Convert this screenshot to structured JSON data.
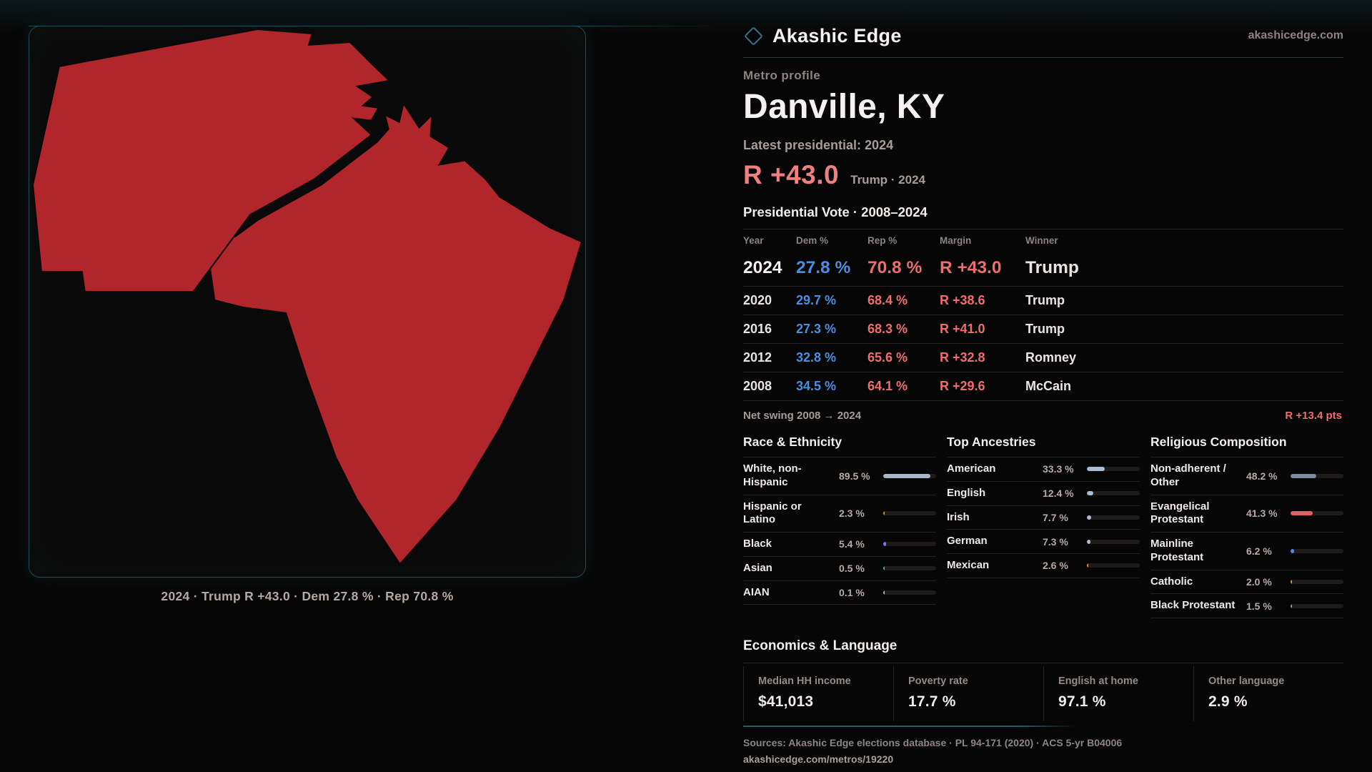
{
  "brand": {
    "name": "Akashic Edge",
    "domain": "akashicedge.com"
  },
  "colors": {
    "accent_teal": "#1d4e57",
    "county_red": "#b1262b",
    "dem_blue": "#4b8ee2",
    "rep_red": "#ef6d6d",
    "margin_big_red": "#f07f81"
  },
  "profile": {
    "kicker": "Metro profile",
    "title": "Danville, KY",
    "latest_label": "Latest presidential: 2024",
    "margin_big": "R +43.0",
    "margin_sub": "Trump · 2024"
  },
  "map": {
    "caption": "2024 · Trump R +43.0 · Dem 27.8 % · Rep 70.8 %"
  },
  "vote_table": {
    "title": "Presidential Vote · 2008–2024",
    "columns": [
      "Year",
      "Dem %",
      "Rep %",
      "Margin",
      "Winner"
    ],
    "rows": [
      {
        "year": "2024",
        "dem": "27.8 %",
        "rep": "70.8 %",
        "margin": "R +43.0",
        "winner": "Trump"
      },
      {
        "year": "2020",
        "dem": "29.7 %",
        "rep": "68.4 %",
        "margin": "R +38.6",
        "winner": "Trump"
      },
      {
        "year": "2016",
        "dem": "27.3 %",
        "rep": "68.3 %",
        "margin": "R +41.0",
        "winner": "Trump"
      },
      {
        "year": "2012",
        "dem": "32.8 %",
        "rep": "65.6 %",
        "margin": "R +32.8",
        "winner": "Romney"
      },
      {
        "year": "2008",
        "dem": "34.5 %",
        "rep": "64.1 %",
        "margin": "R +29.6",
        "winner": "McCain"
      }
    ],
    "net_swing_label": "Net swing 2008 → 2024",
    "net_swing_value": "R +13.4 pts"
  },
  "demographics": [
    {
      "title": "Race & Ethnicity",
      "rows": [
        {
          "label": "White, non-Hispanic",
          "value": "89.5 %",
          "pct": 89.5,
          "color": "#a7b6c6"
        },
        {
          "label": "Hispanic or Latino",
          "value": "2.3 %",
          "pct": 2.3,
          "color": "#df8d12"
        },
        {
          "label": "Black",
          "value": "5.4 %",
          "pct": 5.4,
          "color": "#8771e6"
        },
        {
          "label": "Asian",
          "value": "0.5 %",
          "pct": 0.5,
          "color": "#2fb796"
        },
        {
          "label": "AIAN",
          "value": "0.1 %",
          "pct": 0.1,
          "color": "#a7b6c6"
        }
      ]
    },
    {
      "title": "Top Ancestries",
      "rows": [
        {
          "label": "American",
          "value": "33.3 %",
          "pct": 33.3,
          "color": "#a9bdd3"
        },
        {
          "label": "English",
          "value": "12.4 %",
          "pct": 12.4,
          "color": "#a9bdd3"
        },
        {
          "label": "Irish",
          "value": "7.7 %",
          "pct": 7.7,
          "color": "#a9bdd3"
        },
        {
          "label": "German",
          "value": "7.3 %",
          "pct": 7.3,
          "color": "#a9bdd3"
        },
        {
          "label": "Mexican",
          "value": "2.6 %",
          "pct": 2.6,
          "color": "#e8920f"
        }
      ]
    },
    {
      "title": "Religious Composition",
      "rows": [
        {
          "label": "Non-adherent / Other",
          "value": "48.2 %",
          "pct": 48.2,
          "color": "#7e8aa0"
        },
        {
          "label": "Evangelical Protestant",
          "value": "41.3 %",
          "pct": 41.3,
          "color": "#dd6161"
        },
        {
          "label": "Mainline Protestant",
          "value": "6.2 %",
          "pct": 6.2,
          "color": "#4a8de0"
        },
        {
          "label": "Catholic",
          "value": "2.0 %",
          "pct": 2.0,
          "color": "#d9a21b"
        },
        {
          "label": "Black Protestant",
          "value": "1.5 %",
          "pct": 1.5,
          "color": "#938ce0"
        }
      ]
    }
  ],
  "economics": {
    "title": "Economics & Language",
    "stats": [
      {
        "label": "Median HH income",
        "value": "$41,013"
      },
      {
        "label": "Poverty rate",
        "value": "17.7 %"
      },
      {
        "label": "English at home",
        "value": "97.1 %"
      },
      {
        "label": "Other language",
        "value": "2.9 %"
      }
    ]
  },
  "footer": {
    "sources": "Sources: Akashic Edge elections database · PL 94-171 (2020) · ACS 5-yr B04006",
    "permalink": "akashicedge.com/metros/19220"
  },
  "chart_data": [
    {
      "type": "table",
      "title": "Presidential Vote · 2008–2024",
      "columns": [
        "Year",
        "Dem %",
        "Rep %",
        "Margin",
        "Winner"
      ],
      "rows": [
        [
          2024,
          27.8,
          70.8,
          "R +43.0",
          "Trump"
        ],
        [
          2020,
          29.7,
          68.4,
          "R +38.6",
          "Trump"
        ],
        [
          2016,
          27.3,
          68.3,
          "R +41.0",
          "Trump"
        ],
        [
          2012,
          32.8,
          65.6,
          "R +32.8",
          "Romney"
        ],
        [
          2008,
          34.5,
          64.1,
          "R +29.6",
          "McCain"
        ]
      ],
      "note": "Net swing 2008 → 2024: R +13.4 pts"
    },
    {
      "type": "bar",
      "title": "Race & Ethnicity",
      "unit": "%",
      "xlim": [
        0,
        100
      ],
      "categories": [
        "White, non-Hispanic",
        "Hispanic or Latino",
        "Black",
        "Asian",
        "AIAN"
      ],
      "values": [
        89.5,
        2.3,
        5.4,
        0.5,
        0.1
      ]
    },
    {
      "type": "bar",
      "title": "Top Ancestries",
      "unit": "%",
      "xlim": [
        0,
        100
      ],
      "categories": [
        "American",
        "English",
        "Irish",
        "German",
        "Mexican"
      ],
      "values": [
        33.3,
        12.4,
        7.7,
        7.3,
        2.6
      ]
    },
    {
      "type": "bar",
      "title": "Religious Composition",
      "unit": "%",
      "xlim": [
        0,
        100
      ],
      "categories": [
        "Non-adherent / Other",
        "Evangelical Protestant",
        "Mainline Protestant",
        "Catholic",
        "Black Protestant"
      ],
      "values": [
        48.2,
        41.3,
        6.2,
        2.0,
        1.5
      ]
    },
    {
      "type": "table",
      "title": "Economics & Language",
      "columns": [
        "Median HH income",
        "Poverty rate",
        "English at home",
        "Other language"
      ],
      "rows": [
        [
          "$41,013",
          "17.7 %",
          "97.1 %",
          "2.9 %"
        ]
      ]
    }
  ]
}
